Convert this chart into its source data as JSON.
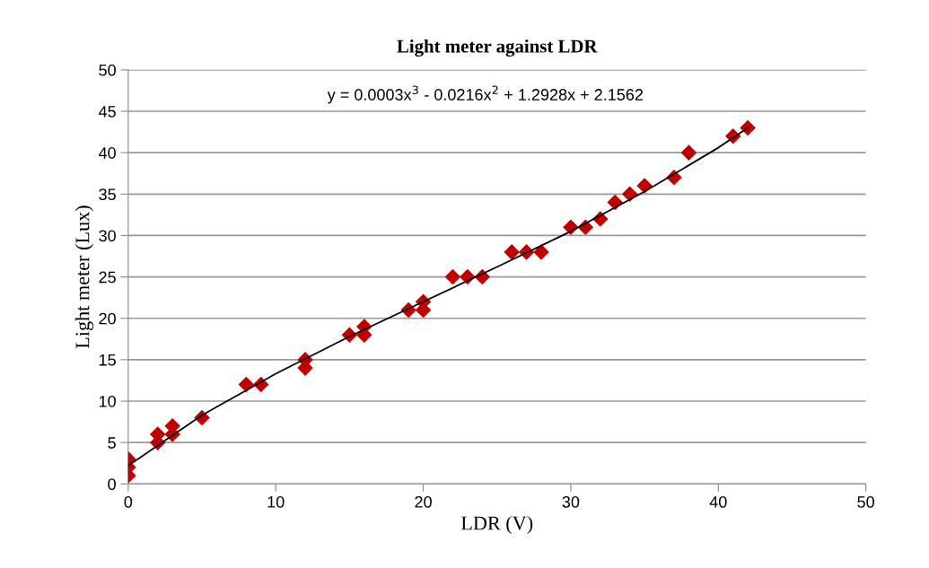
{
  "chart_data": {
    "type": "scatter",
    "title": "Light meter against LDR",
    "xlabel": "LDR (V)",
    "ylabel": "Light meter (Lux)",
    "annotations": [
      "y = 0.0003x$^{3}$ - 0.0216x$^{2}$ + 1.2928x + 2.1562"
    ],
    "series": [
      {
        "color": "#c00000",
        "marker": "diamond",
        "x": [
          0,
          0,
          0,
          2,
          2,
          3,
          3,
          5,
          8,
          9,
          12,
          12,
          15,
          16,
          16,
          19,
          20,
          20,
          22,
          23,
          24,
          26,
          27,
          28,
          30,
          31,
          32,
          33,
          34,
          35,
          37,
          38,
          41,
          42
        ],
        "values": [
          1,
          2,
          3,
          5,
          6,
          6,
          7,
          8,
          12,
          12,
          14,
          15,
          18,
          18,
          19,
          21,
          21,
          22,
          25,
          25,
          25,
          28,
          28,
          28,
          31,
          31,
          32,
          34,
          35,
          36,
          37,
          40,
          42,
          43
        ]
      },
      {
        "type": "line",
        "color": "#000000",
        "marker": "none",
        "x": [
          0,
          5,
          10,
          15,
          20,
          25,
          30,
          35,
          40,
          42
        ],
        "values": [
          2.2,
          8.3,
          13.3,
          17.8,
          22.0,
          26.2,
          30.5,
          35.3,
          40.6,
          43.0
        ]
      }
    ],
    "xlim": [
      0,
      50
    ],
    "xticks": [
      0,
      10,
      20,
      30,
      40,
      50
    ],
    "ylim": [
      0,
      50
    ],
    "yticks": [
      0,
      5,
      10,
      15,
      20,
      25,
      30,
      35,
      40,
      45,
      50
    ],
    "grid": "y",
    "legend": false
  }
}
